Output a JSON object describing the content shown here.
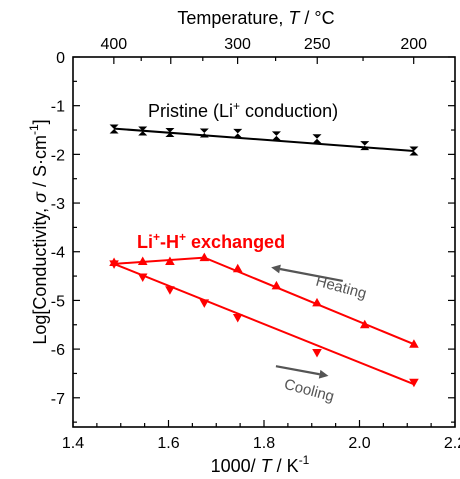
{
  "chart_data": {
    "type": "scatter",
    "xlabel_main": "1000/ ",
    "xlabel_T": "T",
    "xlabel_unit": " / K",
    "xlabel_exp": "-1",
    "ylabel_pre": "Log[Conductivity, ",
    "ylabel_sigma": "σ",
    "ylabel_unit": " / S·cm",
    "ylabel_exp": "-1",
    "ylabel_post": "]",
    "top_xlabel_pre": "Temperature, ",
    "top_xlabel_T": "T",
    "top_xlabel_unit": " / °C",
    "xlim": [
      1.4,
      2.2
    ],
    "ylim": [
      -7.6,
      0
    ],
    "xticks": [
      1.4,
      1.6,
      1.8,
      2.0,
      2.2
    ],
    "xtick_labels": [
      "1.4",
      "1.6",
      "1.8",
      "2.0",
      "2.2"
    ],
    "yticks": [
      0,
      -1,
      -2,
      -3,
      -4,
      -5,
      -6,
      -7
    ],
    "ytick_labels": [
      "0",
      "-1",
      "-2",
      "-3",
      "-4",
      "-5",
      "-6",
      "-7"
    ],
    "top_ticks_celsius": [
      400,
      300,
      250,
      200
    ],
    "top_tick_labels": [
      "400",
      "300",
      "250",
      "200"
    ],
    "annotations": {
      "pristine_pre": "Pristine (Li",
      "pristine_sup": "+",
      "pristine_post": " conduction)",
      "exchanged_a": "Li",
      "exchanged_sup1": "+",
      "exchanged_b": "-H",
      "exchanged_sup2": "+",
      "exchanged_c": " exchanged",
      "heating": "Heating",
      "cooling": "Cooling"
    },
    "series": [
      {
        "color": "#000000",
        "marker": "bowtie",
        "x": [
          1.486,
          1.546,
          1.603,
          1.675,
          1.745,
          1.826,
          1.911,
          2.011,
          2.114
        ],
        "y": [
          -1.48,
          -1.52,
          -1.55,
          -1.56,
          -1.57,
          -1.62,
          -1.68,
          -1.82,
          -1.93
        ],
        "fit": [
          [
            1.486,
            -1.47
          ],
          [
            2.114,
            -1.93
          ]
        ]
      },
      {
        "color": "#ff0000",
        "marker": "triangle-up",
        "x": [
          1.486,
          1.546,
          1.603,
          1.675,
          1.745,
          1.826,
          1.911,
          2.011,
          2.114
        ],
        "y": [
          -4.22,
          -4.2,
          -4.2,
          -4.12,
          -4.35,
          -4.7,
          -5.05,
          -5.5,
          -5.9
        ],
        "fit": [
          [
            1.486,
            -4.25
          ],
          [
            1.675,
            -4.12
          ],
          [
            2.114,
            -5.9
          ]
        ]
      },
      {
        "color": "#ff0000",
        "marker": "triangle-down",
        "x": [
          1.486,
          1.546,
          1.603,
          1.675,
          1.745,
          1.911,
          2.114
        ],
        "y": [
          -4.25,
          -4.52,
          -4.78,
          -5.05,
          -5.35,
          -6.07,
          -6.68
        ],
        "fit": [
          [
            1.486,
            -4.25
          ],
          [
            2.114,
            -6.72
          ]
        ]
      }
    ],
    "arrows": [
      {
        "label": "heating",
        "color": "#555555",
        "from": [
          1.965,
          -4.6
        ],
        "to": [
          1.815,
          -4.32
        ]
      },
      {
        "label": "cooling",
        "color": "#555555",
        "from": [
          1.825,
          -6.35
        ],
        "to": [
          1.935,
          -6.55
        ]
      }
    ]
  }
}
